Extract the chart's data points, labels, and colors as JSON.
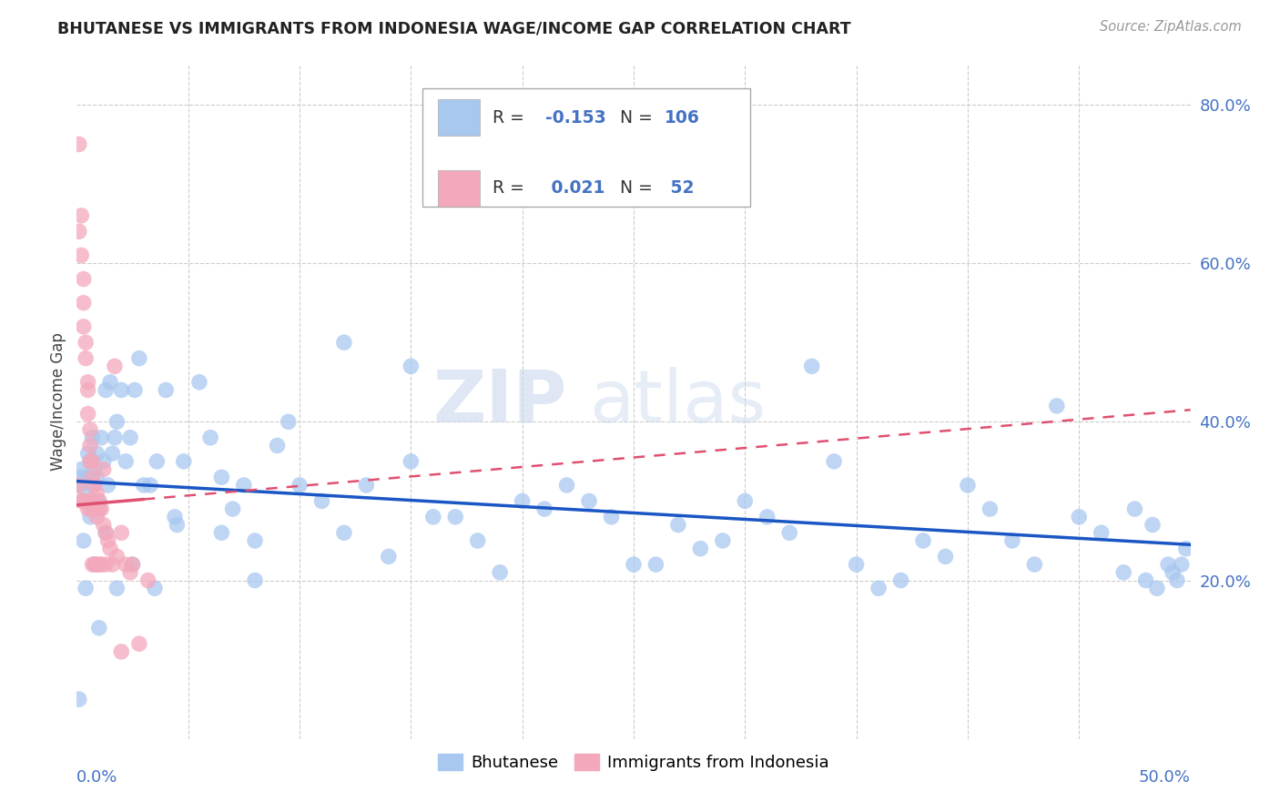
{
  "title": "BHUTANESE VS IMMIGRANTS FROM INDONESIA WAGE/INCOME GAP CORRELATION CHART",
  "source": "Source: ZipAtlas.com",
  "ylabel": "Wage/Income Gap",
  "right_yticks": [
    "20.0%",
    "40.0%",
    "60.0%",
    "80.0%"
  ],
  "right_ytick_vals": [
    0.2,
    0.4,
    0.6,
    0.8
  ],
  "legend_label1": "Bhutanese",
  "legend_label2": "Immigrants from Indonesia",
  "R1": -0.153,
  "N1": 106,
  "R2": 0.021,
  "N2": 52,
  "color_blue": "#A8C8F0",
  "color_pink": "#F4A8BB",
  "trendline_blue": "#1A56C4",
  "trendline_pink": "#E05070",
  "watermark_zip": "ZIP",
  "watermark_atlas": "atlas",
  "background_color": "#FFFFFF",
  "xlim": [
    0,
    0.5
  ],
  "ylim": [
    0,
    0.85
  ],
  "blue_scatter_x": [
    0.001,
    0.002,
    0.003,
    0.004,
    0.005,
    0.005,
    0.006,
    0.006,
    0.007,
    0.007,
    0.008,
    0.008,
    0.009,
    0.009,
    0.01,
    0.01,
    0.011,
    0.012,
    0.013,
    0.014,
    0.015,
    0.016,
    0.017,
    0.018,
    0.02,
    0.022,
    0.024,
    0.026,
    0.028,
    0.03,
    0.033,
    0.036,
    0.04,
    0.044,
    0.048,
    0.055,
    0.06,
    0.065,
    0.07,
    0.075,
    0.08,
    0.09,
    0.095,
    0.1,
    0.11,
    0.12,
    0.13,
    0.14,
    0.15,
    0.16,
    0.17,
    0.18,
    0.19,
    0.2,
    0.21,
    0.22,
    0.23,
    0.24,
    0.25,
    0.26,
    0.27,
    0.28,
    0.29,
    0.3,
    0.31,
    0.32,
    0.33,
    0.34,
    0.35,
    0.36,
    0.37,
    0.38,
    0.39,
    0.4,
    0.41,
    0.42,
    0.43,
    0.44,
    0.45,
    0.46,
    0.47,
    0.475,
    0.48,
    0.483,
    0.485,
    0.49,
    0.492,
    0.494,
    0.496,
    0.498,
    0.12,
    0.15,
    0.08,
    0.065,
    0.045,
    0.035,
    0.025,
    0.018,
    0.013,
    0.01,
    0.008,
    0.006,
    0.004,
    0.003,
    0.002,
    0.001
  ],
  "blue_scatter_y": [
    0.32,
    0.34,
    0.3,
    0.31,
    0.33,
    0.36,
    0.35,
    0.29,
    0.32,
    0.38,
    0.3,
    0.34,
    0.33,
    0.36,
    0.3,
    0.29,
    0.38,
    0.35,
    0.44,
    0.32,
    0.45,
    0.36,
    0.38,
    0.4,
    0.44,
    0.35,
    0.38,
    0.44,
    0.48,
    0.32,
    0.32,
    0.35,
    0.44,
    0.28,
    0.35,
    0.45,
    0.38,
    0.33,
    0.29,
    0.32,
    0.25,
    0.37,
    0.4,
    0.32,
    0.3,
    0.26,
    0.32,
    0.23,
    0.35,
    0.28,
    0.28,
    0.25,
    0.21,
    0.3,
    0.29,
    0.32,
    0.3,
    0.28,
    0.22,
    0.22,
    0.27,
    0.24,
    0.25,
    0.3,
    0.28,
    0.26,
    0.47,
    0.35,
    0.22,
    0.19,
    0.2,
    0.25,
    0.23,
    0.32,
    0.29,
    0.25,
    0.22,
    0.42,
    0.28,
    0.26,
    0.21,
    0.29,
    0.2,
    0.27,
    0.19,
    0.22,
    0.21,
    0.2,
    0.22,
    0.24,
    0.5,
    0.47,
    0.2,
    0.26,
    0.27,
    0.19,
    0.22,
    0.19,
    0.26,
    0.14,
    0.22,
    0.28,
    0.19,
    0.25,
    0.33,
    0.05
  ],
  "pink_scatter_x": [
    0.001,
    0.001,
    0.001,
    0.002,
    0.002,
    0.002,
    0.003,
    0.003,
    0.003,
    0.003,
    0.004,
    0.004,
    0.004,
    0.005,
    0.005,
    0.005,
    0.005,
    0.006,
    0.006,
    0.006,
    0.006,
    0.007,
    0.007,
    0.007,
    0.007,
    0.008,
    0.008,
    0.008,
    0.009,
    0.009,
    0.009,
    0.01,
    0.01,
    0.01,
    0.011,
    0.011,
    0.012,
    0.012,
    0.013,
    0.013,
    0.014,
    0.015,
    0.016,
    0.017,
    0.018,
    0.02,
    0.022,
    0.024,
    0.025,
    0.028,
    0.032,
    0.02
  ],
  "pink_scatter_y": [
    0.75,
    0.64,
    0.32,
    0.66,
    0.61,
    0.3,
    0.58,
    0.55,
    0.52,
    0.3,
    0.5,
    0.48,
    0.3,
    0.45,
    0.44,
    0.41,
    0.29,
    0.39,
    0.37,
    0.35,
    0.3,
    0.35,
    0.33,
    0.29,
    0.22,
    0.32,
    0.29,
    0.22,
    0.31,
    0.28,
    0.22,
    0.3,
    0.29,
    0.22,
    0.29,
    0.22,
    0.27,
    0.34,
    0.26,
    0.22,
    0.25,
    0.24,
    0.22,
    0.47,
    0.23,
    0.26,
    0.22,
    0.21,
    0.22,
    0.12,
    0.2,
    0.11
  ],
  "blue_trendline_x0": 0.0,
  "blue_trendline_x1": 0.5,
  "blue_trendline_y0": 0.325,
  "blue_trendline_y1": 0.245,
  "pink_trendline_x0": 0.0,
  "pink_trendline_x1": 0.5,
  "pink_trendline_y0": 0.295,
  "pink_trendline_y1": 0.415
}
